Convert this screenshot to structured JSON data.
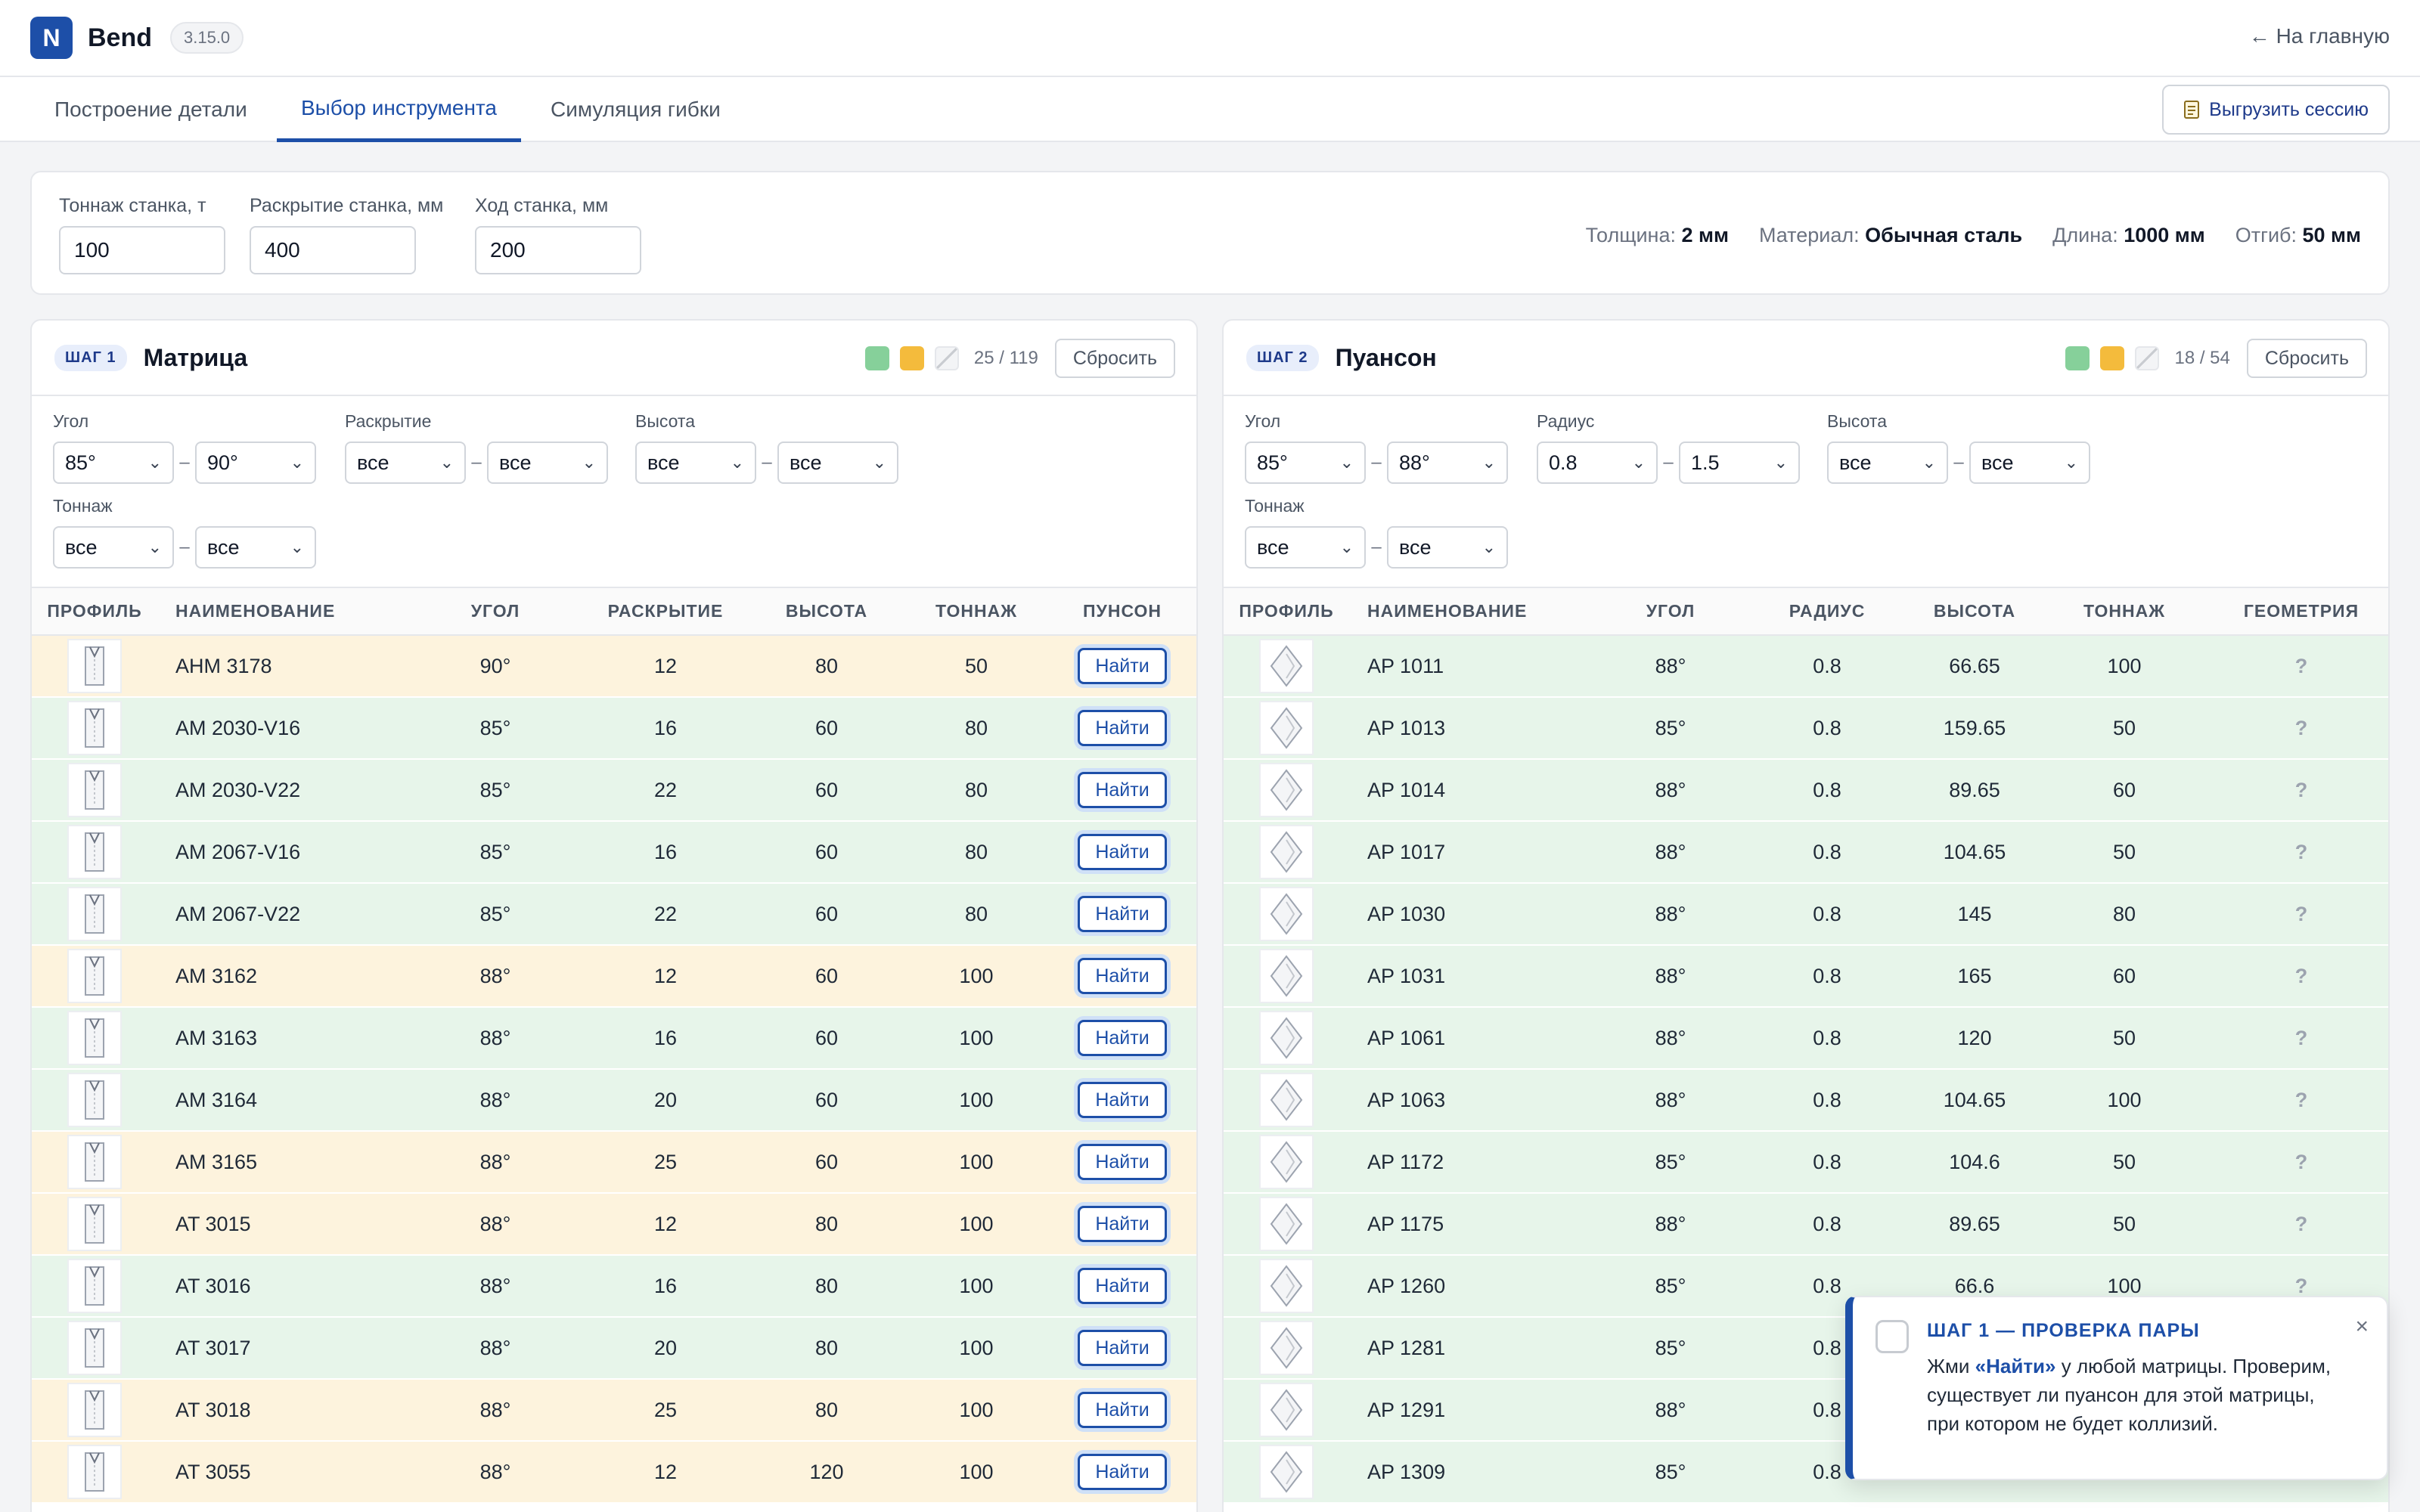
{
  "header": {
    "logo_letter": "N",
    "app_name": "Bend",
    "version": "3.15.0",
    "home_link": "← На главную"
  },
  "tabs": [
    {
      "label": "Построение детали"
    },
    {
      "label": "Выбор инструмента",
      "active": true
    },
    {
      "label": "Симуляция гибки"
    }
  ],
  "export_button": "Выгрузить сессию",
  "machine": {
    "tonnage_label": "Тоннаж станка, т",
    "tonnage_value": "100",
    "opening_label": "Раскрытие станка, мм",
    "opening_value": "400",
    "stroke_label": "Ход станка, мм",
    "stroke_value": "200"
  },
  "summary": {
    "thickness_label": "Толщина:",
    "thickness_value": "2 мм",
    "material_label": "Материал:",
    "material_value": "Обычная сталь",
    "length_label": "Длина:",
    "length_value": "1000 мм",
    "flange_label": "Отгиб:",
    "flange_value": "50 мм"
  },
  "legend_colors": {
    "green": "#86d09a",
    "amber": "#f4bb3c"
  },
  "die_panel": {
    "step": "ШАГ 1",
    "title": "Матрица",
    "count": "25 / 119",
    "reset": "Сбросить",
    "filters": {
      "angle_label": "Угол",
      "angle_from": "85°",
      "angle_to": "90°",
      "opening_label": "Раскрытие",
      "opening_from": "все",
      "opening_to": "все",
      "height_label": "Высота",
      "height_from": "все",
      "height_to": "все",
      "tonnage_label": "Тоннаж",
      "tonnage_from": "все",
      "tonnage_to": "все"
    },
    "columns": {
      "profile": "ПРОФИЛЬ",
      "name": "НАИМЕНОВАНИЕ",
      "angle": "УГОЛ",
      "opening": "РАСКРЫТИЕ",
      "height": "ВЫСОТА",
      "tonnage": "ТОННАЖ",
      "punch": "ПУНСОН"
    },
    "find_label": "Найти",
    "rows": [
      {
        "status": "amber",
        "name": "AHM 3178",
        "angle": "90°",
        "opening": "12",
        "height": "80",
        "tonnage": "50"
      },
      {
        "status": "green",
        "name": "AM 2030-V16",
        "angle": "85°",
        "opening": "16",
        "height": "60",
        "tonnage": "80"
      },
      {
        "status": "green",
        "name": "AM 2030-V22",
        "angle": "85°",
        "opening": "22",
        "height": "60",
        "tonnage": "80"
      },
      {
        "status": "green",
        "name": "AM 2067-V16",
        "angle": "85°",
        "opening": "16",
        "height": "60",
        "tonnage": "80"
      },
      {
        "status": "green",
        "name": "AM 2067-V22",
        "angle": "85°",
        "opening": "22",
        "height": "60",
        "tonnage": "80"
      },
      {
        "status": "amber",
        "name": "AM 3162",
        "angle": "88°",
        "opening": "12",
        "height": "60",
        "tonnage": "100"
      },
      {
        "status": "green",
        "name": "AM 3163",
        "angle": "88°",
        "opening": "16",
        "height": "60",
        "tonnage": "100"
      },
      {
        "status": "green",
        "name": "AM 3164",
        "angle": "88°",
        "opening": "20",
        "height": "60",
        "tonnage": "100"
      },
      {
        "status": "amber",
        "name": "AM 3165",
        "angle": "88°",
        "opening": "25",
        "height": "60",
        "tonnage": "100"
      },
      {
        "status": "amber",
        "name": "AT 3015",
        "angle": "88°",
        "opening": "12",
        "height": "80",
        "tonnage": "100"
      },
      {
        "status": "green",
        "name": "AT 3016",
        "angle": "88°",
        "opening": "16",
        "height": "80",
        "tonnage": "100"
      },
      {
        "status": "green",
        "name": "AT 3017",
        "angle": "88°",
        "opening": "20",
        "height": "80",
        "tonnage": "100"
      },
      {
        "status": "amber",
        "name": "AT 3018",
        "angle": "88°",
        "opening": "25",
        "height": "80",
        "tonnage": "100"
      },
      {
        "status": "amber",
        "name": "AT 3055",
        "angle": "88°",
        "opening": "12",
        "height": "120",
        "tonnage": "100"
      }
    ]
  },
  "punch_panel": {
    "step": "ШАГ 2",
    "title": "Пуансон",
    "count": "18 / 54",
    "reset": "Сбросить",
    "filters": {
      "angle_label": "Угол",
      "angle_from": "85°",
      "angle_to": "88°",
      "radius_label": "Радиус",
      "radius_from": "0.8",
      "radius_to": "1.5",
      "height_label": "Высота",
      "height_from": "все",
      "height_to": "все",
      "tonnage_label": "Тоннаж",
      "tonnage_from": "все",
      "tonnage_to": "все"
    },
    "columns": {
      "profile": "ПРОФИЛЬ",
      "name": "НАИМЕНОВАНИЕ",
      "angle": "УГОЛ",
      "radius": "РАДИУС",
      "height": "ВЫСОТА",
      "tonnage": "ТОННАЖ",
      "geometry": "ГЕОМЕТРИЯ"
    },
    "geometry_unknown": "?",
    "rows": [
      {
        "status": "green",
        "name": "AP 1011",
        "angle": "88°",
        "radius": "0.8",
        "height": "66.65",
        "tonnage": "100"
      },
      {
        "status": "green",
        "name": "AP 1013",
        "angle": "85°",
        "radius": "0.8",
        "height": "159.65",
        "tonnage": "50"
      },
      {
        "status": "green",
        "name": "AP 1014",
        "angle": "88°",
        "radius": "0.8",
        "height": "89.65",
        "tonnage": "60"
      },
      {
        "status": "green",
        "name": "AP 1017",
        "angle": "88°",
        "radius": "0.8",
        "height": "104.65",
        "tonnage": "50"
      },
      {
        "status": "green",
        "name": "AP 1030",
        "angle": "88°",
        "radius": "0.8",
        "height": "145",
        "tonnage": "80"
      },
      {
        "status": "green",
        "name": "AP 1031",
        "angle": "88°",
        "radius": "0.8",
        "height": "165",
        "tonnage": "60"
      },
      {
        "status": "green",
        "name": "AP 1061",
        "angle": "88°",
        "radius": "0.8",
        "height": "120",
        "tonnage": "50"
      },
      {
        "status": "green",
        "name": "AP 1063",
        "angle": "88°",
        "radius": "0.8",
        "height": "104.65",
        "tonnage": "100"
      },
      {
        "status": "green",
        "name": "AP 1172",
        "angle": "85°",
        "radius": "0.8",
        "height": "104.6",
        "tonnage": "50"
      },
      {
        "status": "green",
        "name": "AP 1175",
        "angle": "88°",
        "radius": "0.8",
        "height": "89.65",
        "tonnage": "50"
      },
      {
        "status": "green",
        "name": "AP 1260",
        "angle": "85°",
        "radius": "0.8",
        "height": "66.6",
        "tonnage": "100"
      },
      {
        "status": "green",
        "name": "AP 1281",
        "angle": "85°",
        "radius": "0.8",
        "height": "",
        "tonnage": ""
      },
      {
        "status": "green",
        "name": "AP 1291",
        "angle": "88°",
        "radius": "0.8",
        "height": "",
        "tonnage": ""
      },
      {
        "status": "green",
        "name": "AP 1309",
        "angle": "85°",
        "radius": "0.8",
        "height": "",
        "tonnage": ""
      }
    ]
  },
  "toast": {
    "title": "ШАГ 1 — ПРОВЕРКА ПАРЫ",
    "body_prefix": "Жми ",
    "body_strong": "«Найти»",
    "body_suffix": " у любой матрицы. Проверим, существует ли пуансон для этой матрицы, при котором не будет коллизий.",
    "close": "×"
  }
}
